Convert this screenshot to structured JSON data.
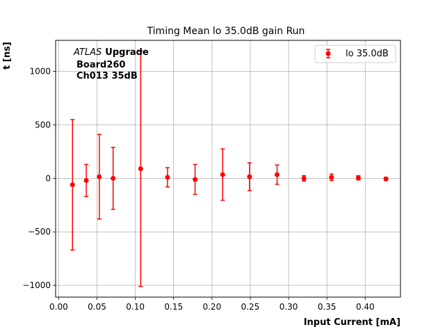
{
  "chart_data": {
    "type": "scatter",
    "title": "Timing Mean lo 35.0dB gain Run",
    "xlabel": "Input Current [mA]",
    "ylabel": "t [ns]",
    "xlim": [
      -0.004,
      0.446
    ],
    "ylim": [
      -1110,
      1290
    ],
    "xticks": [
      0.0,
      0.05,
      0.1,
      0.15,
      0.2,
      0.25,
      0.3,
      0.35,
      0.4
    ],
    "xtick_labels": [
      "0.00",
      "0.05",
      "0.10",
      "0.15",
      "0.20",
      "0.25",
      "0.30",
      "0.35",
      "0.40"
    ],
    "yticks": [
      -1000,
      -500,
      0,
      500,
      1000
    ],
    "ytick_labels": [
      "−1000",
      "−500",
      "0",
      "500",
      "1000"
    ],
    "grid": true,
    "legend_position": "top-right",
    "annotation": {
      "line1_italic": "ATLAS",
      "line1_bold": "Upgrade",
      "line2": "Board260",
      "line3": "Ch013 35dB"
    },
    "series": [
      {
        "name": "lo 35.0dB",
        "color": "#ff0000",
        "marker": "circle",
        "x": [
          0.018,
          0.036,
          0.053,
          0.071,
          0.107,
          0.142,
          0.178,
          0.214,
          0.249,
          0.285,
          0.32,
          0.356,
          0.391,
          0.427
        ],
        "y": [
          -60,
          -20,
          15,
          0,
          90,
          10,
          -10,
          35,
          15,
          35,
          0,
          10,
          5,
          -5
        ],
        "yerr": [
          610,
          150,
          395,
          290,
          1100,
          90,
          140,
          240,
          130,
          90,
          25,
          30,
          20,
          15
        ]
      }
    ]
  }
}
